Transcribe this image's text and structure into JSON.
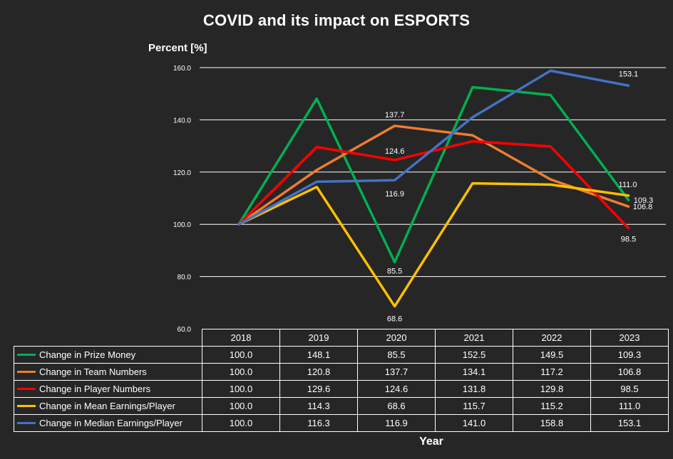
{
  "chart_data": {
    "type": "line",
    "title": "COVID and its impact on ESPORTS",
    "ylabel": "Percent [%]",
    "xlabel": "Year",
    "ylim": [
      60,
      160
    ],
    "yticks": [
      "60.0",
      "80.0",
      "100.0",
      "120.0",
      "140.0",
      "160.0"
    ],
    "grid": true,
    "categories": [
      "2018",
      "2019",
      "2020",
      "2021",
      "2022",
      "2023"
    ],
    "series": [
      {
        "name": "Change in Prize Money",
        "color": "#00B050",
        "values": [
          100.0,
          148.1,
          85.5,
          152.5,
          149.5,
          109.3
        ],
        "display": [
          "100.0",
          "148.1",
          "85.5",
          "152.5",
          "149.5",
          "109.3"
        ]
      },
      {
        "name": "Change in Team Numbers",
        "color": "#ED7D31",
        "values": [
          100.0,
          120.8,
          137.7,
          134.1,
          117.2,
          106.8
        ],
        "display": [
          "100.0",
          "120.8",
          "137.7",
          "134.1",
          "117.2",
          "106.8"
        ]
      },
      {
        "name": "Change in Player Numbers",
        "color": "#FF0000",
        "values": [
          100.0,
          129.6,
          124.6,
          131.8,
          129.8,
          98.5
        ],
        "display": [
          "100.0",
          "129.6",
          "124.6",
          "131.8",
          "129.8",
          "98.5"
        ]
      },
      {
        "name": "Change in Mean Earnings/Player",
        "color": "#FFC000",
        "values": [
          100.0,
          114.3,
          68.6,
          115.7,
          115.2,
          111.0
        ],
        "display": [
          "100.0",
          "114.3",
          "68.6",
          "115.7",
          "115.2",
          "111.0"
        ]
      },
      {
        "name": "Change in Median Earnings/Player",
        "color": "#4472C4",
        "values": [
          100.0,
          116.3,
          116.9,
          141.0,
          158.8,
          153.1
        ],
        "display": [
          "100.0",
          "116.3",
          "116.9",
          "141.0",
          "158.8",
          "153.1"
        ]
      }
    ],
    "data_labels": [
      {
        "series": 1,
        "index": 2,
        "text": "137.7"
      },
      {
        "series": 2,
        "index": 2,
        "text": "124.6"
      },
      {
        "series": 4,
        "index": 2,
        "text": "116.9"
      },
      {
        "series": 0,
        "index": 2,
        "text": "85.5"
      },
      {
        "series": 3,
        "index": 2,
        "text": "68.6"
      },
      {
        "series": 4,
        "index": 5,
        "text": "153.1"
      },
      {
        "series": 3,
        "index": 5,
        "text": "111.0"
      },
      {
        "series": 0,
        "index": 5,
        "text": "109.3"
      },
      {
        "series": 1,
        "index": 5,
        "text": "106.8"
      },
      {
        "series": 2,
        "index": 5,
        "text": "98.5"
      }
    ]
  }
}
